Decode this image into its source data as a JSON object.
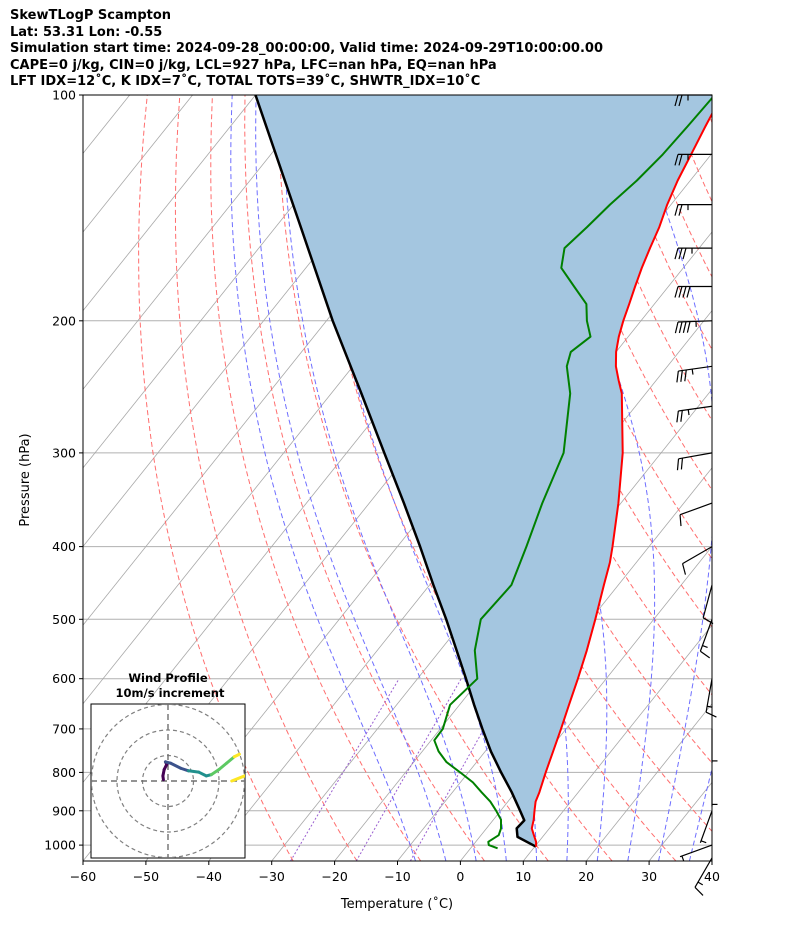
{
  "header": {
    "line1": "SkewTLogP Scampton",
    "line2": "Lat: 53.31   Lon: -0.55",
    "line3": "Simulation start time: 2024-09-28_00:00:00, Valid time: 2024-09-29T10:00:00.00",
    "line4": "CAPE=0 j/kg, CIN=0 j/kg, LCL=927 hPa, LFC=nan hPa, EQ=nan hPa",
    "line5": "LFT IDX=12˚C, K IDX=7˚C, TOTAL TOTS=39˚C, SHWTR_IDX=10˚C"
  },
  "colors": {
    "temperature": "#ff0000",
    "dewpoint": "#008000",
    "parcel": "#000000",
    "cape_fill": "#a4c6e0",
    "dry_adiabat": "#ff6e6e",
    "moist_adiabat": "#6e6eff",
    "mixing_ratio": "#9a5fd0",
    "isotherm": "#a8a8a8",
    "isobar": "#b0b0b0"
  },
  "chart_data": {
    "type": "line",
    "title": "",
    "xlabel": "Temperature (˚C)",
    "ylabel": "Pressure (hPa)",
    "xlim": [
      -60,
      40
    ],
    "ylim": [
      1050,
      100
    ],
    "y_scale": "log",
    "x_ticks": [
      "−60",
      "−50",
      "−40",
      "−30",
      "−20",
      "−10",
      "0",
      "10",
      "20",
      "30",
      "40"
    ],
    "y_ticks": [
      "100",
      "200",
      "300",
      "400",
      "500",
      "600",
      "700",
      "800",
      "900",
      "1000"
    ],
    "grid": true,
    "series": [
      {
        "key": "temperature",
        "pressure": [
          1005,
          990,
          970,
          950,
          925,
          900,
          875,
          850,
          800,
          750,
          700,
          650,
          600,
          550,
          500,
          450,
          420,
          400,
          350,
          300,
          250,
          240,
          230,
          220,
          210,
          200,
          190,
          180,
          170,
          160,
          150,
          140,
          130,
          120,
          110,
          100
        ],
        "values": [
          10.2,
          9.6,
          8.4,
          7.2,
          6.4,
          5.4,
          4.4,
          3.8,
          2.3,
          0.8,
          -0.8,
          -2.6,
          -4.5,
          -6.7,
          -9.3,
          -12.3,
          -14.2,
          -15.8,
          -20.4,
          -26.1,
          -33.8,
          -36,
          -38.2,
          -40,
          -41.5,
          -42.8,
          -44,
          -45.3,
          -46.6,
          -47.8,
          -49,
          -50.6,
          -52,
          -53.2,
          -54.5,
          -55.8
        ]
      },
      {
        "key": "dewpoint",
        "pressure": [
          1010,
          1000,
          990,
          970,
          950,
          925,
          900,
          875,
          850,
          825,
          800,
          775,
          750,
          725,
          700,
          650,
          600,
          550,
          500,
          450,
          400,
          350,
          300,
          250,
          230,
          220,
          210,
          200,
          190,
          180,
          170,
          160,
          150,
          140,
          130,
          120,
          110,
          100
        ],
        "values": [
          4.3,
          2.5,
          2.0,
          2.8,
          2.3,
          1.2,
          -0.7,
          -2.8,
          -5.4,
          -8.0,
          -11.3,
          -14.8,
          -17.4,
          -19.5,
          -19.6,
          -21.5,
          -20.5,
          -24.5,
          -27.5,
          -27,
          -29.5,
          -32.5,
          -35.5,
          -42,
          -46,
          -47.2,
          -46,
          -48.6,
          -50.8,
          -55,
          -59.4,
          -61.4,
          -60.5,
          -59.7,
          -58.5,
          -57.7,
          -57.3,
          -57.0
        ]
      },
      {
        "key": "parcel",
        "pressure": [
          1005,
          975,
          950,
          927,
          900,
          850,
          800,
          750,
          700,
          650,
          600,
          550,
          500,
          450,
          400,
          350,
          300,
          250,
          200,
          150,
          100
        ],
        "values": [
          10.2,
          6.0,
          4.8,
          5.0,
          3.1,
          -0.6,
          -4.8,
          -9.1,
          -13.3,
          -17.7,
          -22.3,
          -27.4,
          -33.0,
          -39.4,
          -46.4,
          -54.5,
          -64,
          -75.2,
          -89,
          -106,
          -130
        ]
      }
    ],
    "hodograph": {
      "title": "Wind Profile",
      "subtitle": "10m/s increment",
      "points": [
        [
          -1.8,
          0.5
        ],
        [
          -2,
          2
        ],
        [
          -1.5,
          4.5
        ],
        [
          -0.5,
          6.5
        ],
        [
          -1,
          7.5
        ],
        [
          1,
          7
        ],
        [
          5,
          5
        ],
        [
          8,
          4
        ],
        [
          12,
          3.5
        ],
        [
          15,
          2
        ],
        [
          17,
          2.5
        ],
        [
          20,
          4.5
        ],
        [
          23,
          7
        ],
        [
          26,
          9.5
        ],
        [
          28,
          10.5
        ],
        [
          25,
          0
        ],
        [
          30,
          2
        ]
      ]
    },
    "wind_barbs": [
      {
        "p": 100,
        "speed_kt": 25,
        "dir_deg": 270
      },
      {
        "p": 120,
        "speed_kt": 25,
        "dir_deg": 270
      },
      {
        "p": 140,
        "speed_kt": 25,
        "dir_deg": 270
      },
      {
        "p": 160,
        "speed_kt": 35,
        "dir_deg": 270
      },
      {
        "p": 180,
        "speed_kt": 40,
        "dir_deg": 270
      },
      {
        "p": 200,
        "speed_kt": 45,
        "dir_deg": 268
      },
      {
        "p": 230,
        "speed_kt": 35,
        "dir_deg": 262
      },
      {
        "p": 260,
        "speed_kt": 25,
        "dir_deg": 262
      },
      {
        "p": 300,
        "speed_kt": 20,
        "dir_deg": 260
      },
      {
        "p": 350,
        "speed_kt": 10,
        "dir_deg": 250
      },
      {
        "p": 400,
        "speed_kt": 10,
        "dir_deg": 240
      },
      {
        "p": 450,
        "speed_kt": 10,
        "dir_deg": 195
      },
      {
        "p": 500,
        "speed_kt": 15,
        "dir_deg": 200
      },
      {
        "p": 600,
        "speed_kt": 15,
        "dir_deg": 190
      },
      {
        "p": 700,
        "speed_kt": 5,
        "dir_deg": 180
      },
      {
        "p": 800,
        "speed_kt": 5,
        "dir_deg": 180
      },
      {
        "p": 900,
        "speed_kt": 5,
        "dir_deg": 200
      },
      {
        "p": 1000,
        "speed_kt": 5,
        "dir_deg": 250
      },
      {
        "p": 1040,
        "speed_kt": 15,
        "dir_deg": 210
      }
    ]
  }
}
